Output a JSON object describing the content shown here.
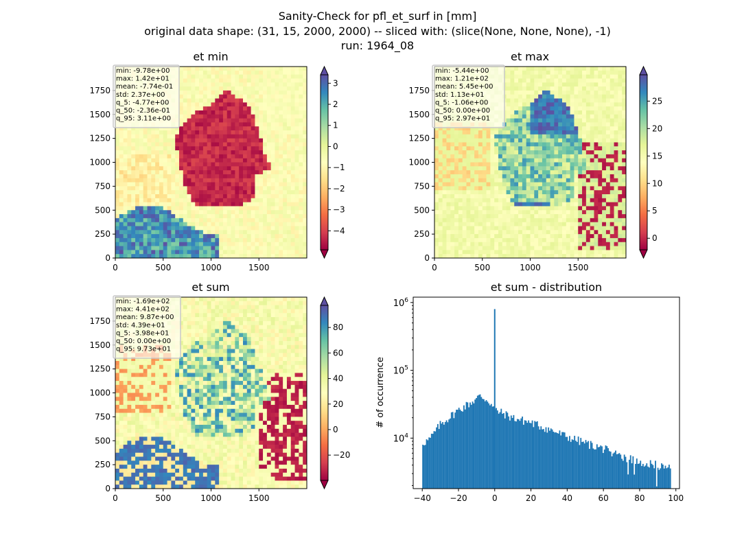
{
  "figure": {
    "title_lines": [
      "Sanity-Check for pfl_et_surf in [mm]",
      "original data shape: (31, 15, 2000, 2000) -- sliced with: (slice(None, None, None), -1)",
      "run: 1964_08"
    ]
  },
  "colors": {
    "histogram_bar": "#1f77b4",
    "spectral_stops": [
      "#9e0142",
      "#d53e4f",
      "#f46d43",
      "#fdae61",
      "#fee08b",
      "#ffffbf",
      "#e6f598",
      "#abdda4",
      "#66c2a5",
      "#3288bd",
      "#5e4fa2"
    ]
  },
  "chart_data": [
    {
      "type": "heatmap",
      "title": "et min",
      "colormap": "Spectral",
      "xlim": [
        0,
        2000
      ],
      "ylim": [
        0,
        2000
      ],
      "xticks": [
        "0",
        "500",
        "1000",
        "1500"
      ],
      "yticks": [
        "0",
        "250",
        "500",
        "750",
        "1000",
        "1250",
        "1500",
        "1750"
      ],
      "colorbar": {
        "range": [
          -4.9,
          3.4
        ],
        "ticks": [
          "−4",
          "−3",
          "−2",
          "−1",
          "0",
          "1",
          "2",
          "3"
        ],
        "tick_values": [
          -4,
          -3,
          -2,
          -1,
          0,
          1,
          2,
          3
        ],
        "extend": "both"
      },
      "stats_lines": [
        "min: -9.78e+00",
        "max: 1.42e+01",
        "mean: -7.74e-01",
        "std: 2.37e+00",
        "q_5: -4.77e+00",
        "q_50: -2.36e-01",
        "q_95: 3.11e+00"
      ]
    },
    {
      "type": "heatmap",
      "title": "et max",
      "colormap": "Spectral",
      "xlim": [
        0,
        2000
      ],
      "ylim": [
        0,
        2000
      ],
      "xticks": [
        "0",
        "500",
        "1000",
        "1500"
      ],
      "yticks": [
        "0",
        "250",
        "500",
        "750",
        "1000",
        "1250",
        "1500",
        "1750"
      ],
      "colorbar": {
        "range": [
          -2.1,
          29.8
        ],
        "ticks": [
          "0",
          "5",
          "10",
          "15",
          "20",
          "25"
        ],
        "tick_values": [
          0,
          5,
          10,
          15,
          20,
          25
        ],
        "extend": "both"
      },
      "stats_lines": [
        "min: -5.44e+00",
        "max: 1.21e+02",
        "mean: 5.45e+00",
        "std: 1.13e+01",
        "q_5: -1.06e+00",
        "q_50: 0.00e+00",
        "q_95: 2.97e+01"
      ]
    },
    {
      "type": "heatmap",
      "title": "et sum",
      "colormap": "Spectral",
      "xlim": [
        0,
        2000
      ],
      "ylim": [
        0,
        2000
      ],
      "xticks": [
        "0",
        "500",
        "1000",
        "1500"
      ],
      "yticks": [
        "0",
        "250",
        "500",
        "750",
        "1000",
        "1250",
        "1500",
        "1750"
      ],
      "colorbar": {
        "range": [
          -39.8,
          97.3
        ],
        "ticks": [
          "−20",
          "0",
          "20",
          "40",
          "60",
          "80"
        ],
        "tick_values": [
          -20,
          0,
          20,
          40,
          60,
          80
        ],
        "extend": "both"
      },
      "stats_lines": [
        "min: -1.69e+02",
        "max: 4.41e+02",
        "mean: 9.87e+00",
        "std: 4.39e+01",
        "q_5: -3.98e+01",
        "q_50: 0.00e+00",
        "q_95: 9.73e+01"
      ]
    },
    {
      "type": "bar",
      "title": "et sum - distribution",
      "ylabel": "# of occurrence",
      "xlabel": "",
      "y_scale": "log",
      "xlim": [
        -45,
        102
      ],
      "ylim": [
        1800,
        1200000
      ],
      "xticks": [
        "−40",
        "−20",
        "0",
        "20",
        "40",
        "60",
        "80",
        "100"
      ],
      "xtick_values": [
        -40,
        -20,
        0,
        20,
        40,
        60,
        80,
        100
      ],
      "yticks": [
        "10^4",
        "10^5",
        "10^6"
      ],
      "ytick_values": [
        10000,
        100000,
        1000000
      ],
      "bin_range": [
        -40,
        97.3
      ],
      "spike": {
        "x": 0,
        "value": 800000
      },
      "profile": [
        [
          -40,
          8500
        ],
        [
          -36,
          9500
        ],
        [
          -30,
          16000
        ],
        [
          -20,
          26000
        ],
        [
          -12,
          35000
        ],
        [
          -8,
          42000
        ],
        [
          -3,
          35000
        ],
        [
          0,
          26000
        ],
        [
          5,
          23000
        ],
        [
          10,
          20000
        ],
        [
          20,
          17000
        ],
        [
          30,
          13500
        ],
        [
          40,
          10500
        ],
        [
          50,
          8500
        ],
        [
          60,
          7000
        ],
        [
          70,
          5500
        ],
        [
          80,
          4500
        ],
        [
          90,
          4000
        ],
        [
          97,
          3600
        ]
      ]
    }
  ]
}
